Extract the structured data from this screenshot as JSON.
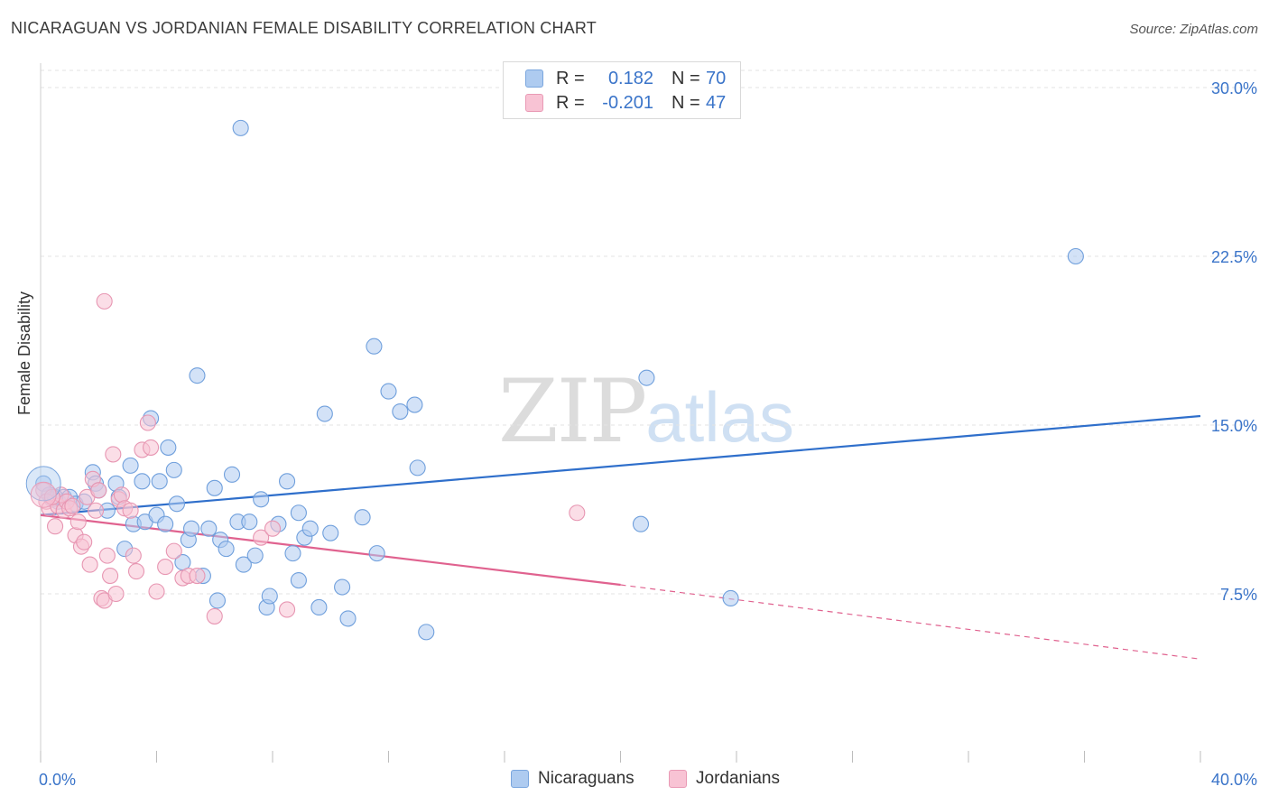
{
  "header": {
    "title": "NICARAGUAN VS JORDANIAN FEMALE DISABILITY CORRELATION CHART",
    "source": "Source: ZipAtlas.com"
  },
  "watermark": {
    "zip": "ZIP",
    "atlas": "atlas"
  },
  "legend": {
    "rows": [
      {
        "r_label": "R =",
        "r_value": "0.182",
        "n_label": "N =",
        "n_value": "70",
        "color": "#aecbf0",
        "border": "#7aa6de"
      },
      {
        "r_label": "R =",
        "r_value": "-0.201",
        "n_label": "N =",
        "n_value": "47",
        "color": "#f8c3d4",
        "border": "#e99ab5"
      }
    ]
  },
  "bottom_legend": {
    "items": [
      {
        "label": "Nicaraguans",
        "color": "#aecbf0",
        "border": "#7aa6de"
      },
      {
        "label": "Jordanians",
        "color": "#f8c3d4",
        "border": "#e99ab5"
      }
    ]
  },
  "chart_data": {
    "type": "scatter",
    "title": "NICARAGUAN VS JORDANIAN FEMALE DISABILITY CORRELATION CHART",
    "xlabel": "",
    "ylabel": "Female Disability",
    "xlim": [
      0,
      40
    ],
    "ylim": [
      0,
      31.5
    ],
    "x_tick_labels": [
      "0.0%",
      "40.0%"
    ],
    "y_ticks": [
      7.5,
      15.0,
      22.5,
      30.0
    ],
    "y_tick_labels": [
      "7.5%",
      "15.0%",
      "22.5%",
      "30.0%"
    ],
    "grid": true,
    "series": [
      {
        "name": "Nicaraguans",
        "color": "#6f9fdc",
        "fill": "#aecbf0",
        "trend": {
          "x": [
            0,
            40
          ],
          "y": [
            11.0,
            15.4
          ],
          "color": "#2f6fcb"
        },
        "points": [
          [
            0.1,
            12.4
          ],
          [
            0.3,
            11.9
          ],
          [
            0.4,
            11.7
          ],
          [
            0.6,
            11.6
          ],
          [
            0.8,
            11.8
          ],
          [
            1.0,
            11.8
          ],
          [
            1.2,
            11.5
          ],
          [
            1.5,
            11.6
          ],
          [
            1.8,
            12.9
          ],
          [
            1.9,
            12.4
          ],
          [
            2.0,
            12.1
          ],
          [
            2.3,
            11.2
          ],
          [
            2.6,
            12.4
          ],
          [
            2.7,
            11.8
          ],
          [
            2.9,
            9.5
          ],
          [
            3.1,
            13.2
          ],
          [
            3.2,
            10.6
          ],
          [
            3.5,
            12.5
          ],
          [
            3.6,
            10.7
          ],
          [
            3.8,
            15.3
          ],
          [
            4.0,
            11.0
          ],
          [
            4.1,
            12.5
          ],
          [
            4.3,
            10.6
          ],
          [
            4.4,
            14.0
          ],
          [
            4.6,
            13.0
          ],
          [
            4.7,
            11.5
          ],
          [
            4.9,
            8.9
          ],
          [
            5.1,
            9.9
          ],
          [
            5.2,
            10.4
          ],
          [
            5.4,
            17.2
          ],
          [
            5.6,
            8.3
          ],
          [
            5.8,
            10.4
          ],
          [
            6.0,
            12.2
          ],
          [
            6.1,
            7.2
          ],
          [
            6.2,
            9.9
          ],
          [
            6.4,
            9.5
          ],
          [
            6.6,
            12.8
          ],
          [
            6.8,
            10.7
          ],
          [
            6.9,
            28.2
          ],
          [
            7.0,
            8.8
          ],
          [
            7.2,
            10.7
          ],
          [
            7.4,
            9.2
          ],
          [
            7.6,
            11.7
          ],
          [
            7.8,
            6.9
          ],
          [
            7.9,
            7.4
          ],
          [
            8.2,
            10.6
          ],
          [
            8.5,
            12.5
          ],
          [
            8.7,
            9.3
          ],
          [
            8.9,
            8.1
          ],
          [
            8.9,
            11.1
          ],
          [
            9.1,
            10.0
          ],
          [
            9.3,
            10.4
          ],
          [
            9.6,
            6.9
          ],
          [
            9.8,
            15.5
          ],
          [
            10.0,
            10.2
          ],
          [
            10.4,
            7.8
          ],
          [
            10.6,
            6.4
          ],
          [
            11.1,
            10.9
          ],
          [
            11.5,
            18.5
          ],
          [
            11.6,
            9.3
          ],
          [
            12.0,
            16.5
          ],
          [
            12.4,
            15.6
          ],
          [
            12.9,
            15.9
          ],
          [
            13.0,
            13.1
          ],
          [
            13.3,
            5.8
          ],
          [
            20.7,
            10.6
          ],
          [
            20.9,
            17.1
          ],
          [
            23.8,
            7.3
          ],
          [
            35.7,
            22.5
          ],
          [
            0.5,
            11.8
          ]
        ]
      },
      {
        "name": "Jordanians",
        "color": "#e796b2",
        "fill": "#f8c3d4",
        "trend": {
          "x": [
            0,
            20
          ],
          "y": [
            11.0,
            7.9
          ],
          "dashed_to": [
            40,
            4.6
          ],
          "color": "#e0628f"
        },
        "points": [
          [
            0.1,
            12.1
          ],
          [
            0.2,
            11.6
          ],
          [
            0.3,
            11.3
          ],
          [
            0.5,
            10.5
          ],
          [
            0.6,
            11.4
          ],
          [
            0.7,
            11.9
          ],
          [
            0.8,
            11.2
          ],
          [
            0.9,
            11.6
          ],
          [
            1.0,
            11.3
          ],
          [
            1.1,
            11.4
          ],
          [
            1.2,
            10.1
          ],
          [
            1.3,
            10.7
          ],
          [
            1.4,
            9.6
          ],
          [
            1.5,
            9.8
          ],
          [
            1.6,
            11.8
          ],
          [
            1.7,
            8.8
          ],
          [
            1.8,
            12.6
          ],
          [
            1.9,
            11.2
          ],
          [
            2.0,
            12.1
          ],
          [
            2.1,
            7.3
          ],
          [
            2.2,
            7.2
          ],
          [
            2.3,
            9.2
          ],
          [
            2.4,
            8.3
          ],
          [
            2.5,
            13.7
          ],
          [
            2.6,
            7.5
          ],
          [
            2.7,
            11.7
          ],
          [
            2.8,
            11.9
          ],
          [
            2.9,
            11.3
          ],
          [
            3.1,
            11.2
          ],
          [
            3.2,
            9.2
          ],
          [
            3.3,
            8.5
          ],
          [
            3.5,
            13.9
          ],
          [
            3.7,
            15.1
          ],
          [
            3.8,
            14.0
          ],
          [
            4.0,
            7.6
          ],
          [
            4.3,
            8.7
          ],
          [
            4.6,
            9.4
          ],
          [
            4.9,
            8.2
          ],
          [
            5.1,
            8.3
          ],
          [
            5.4,
            8.3
          ],
          [
            6.0,
            6.5
          ],
          [
            7.6,
            10.0
          ],
          [
            8.0,
            10.4
          ],
          [
            8.5,
            6.8
          ],
          [
            18.5,
            11.1
          ],
          [
            2.2,
            20.5
          ],
          [
            0.4,
            11.8
          ]
        ]
      }
    ]
  }
}
